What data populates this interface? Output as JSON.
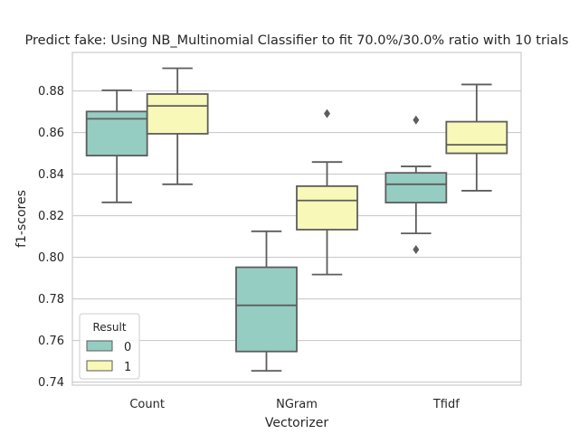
{
  "chart_data": {
    "type": "box",
    "title": "Predict fake: Using NB_Multinomial Classifier to fit 70.0%/30.0% ratio with 10 trials",
    "xlabel": "Vectorizer",
    "ylabel": "f1-scores",
    "categories": [
      "Count",
      "NGram",
      "Tfidf"
    ],
    "ylim": [
      0.7385,
      0.8985
    ],
    "yticks": [
      0.74,
      0.76,
      0.78,
      0.8,
      0.82,
      0.84,
      0.86,
      0.88
    ],
    "ytick_labels": [
      "0.74",
      "0.76",
      "0.78",
      "0.80",
      "0.82",
      "0.84",
      "0.86",
      "0.88"
    ],
    "grid": "y",
    "legend": {
      "title": "Result",
      "placement": "lower-left"
    },
    "series": [
      {
        "name": "0",
        "color": "#96cdc2",
        "boxes": [
          {
            "whisker_low": 0.8264,
            "q1": 0.8489,
            "median": 0.8666,
            "q3": 0.8701,
            "whisker_high": 0.8803,
            "outliers": []
          },
          {
            "whisker_low": 0.7454,
            "q1": 0.7547,
            "median": 0.7769,
            "q3": 0.7952,
            "whisker_high": 0.8125,
            "outliers": []
          },
          {
            "whisker_low": 0.8115,
            "q1": 0.8263,
            "median": 0.8351,
            "q3": 0.8406,
            "whisker_high": 0.8437,
            "outliers": [
              0.866,
              0.8037
            ]
          }
        ]
      },
      {
        "name": "1",
        "color": "#f8f8b8",
        "boxes": [
          {
            "whisker_low": 0.8351,
            "q1": 0.8594,
            "median": 0.8728,
            "q3": 0.8785,
            "whisker_high": 0.8909,
            "outliers": []
          },
          {
            "whisker_low": 0.7917,
            "q1": 0.8133,
            "median": 0.8273,
            "q3": 0.8342,
            "whisker_high": 0.8458,
            "outliers": [
              0.8691
            ]
          },
          {
            "whisker_low": 0.832,
            "q1": 0.85,
            "median": 0.8541,
            "q3": 0.8652,
            "whisker_high": 0.8831,
            "outliers": []
          }
        ]
      }
    ]
  }
}
